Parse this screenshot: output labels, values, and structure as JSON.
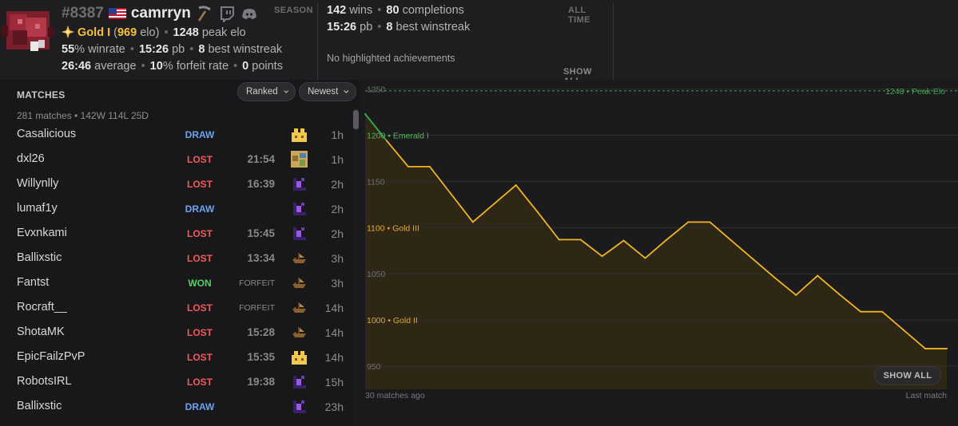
{
  "profile": {
    "rank": "#8387",
    "username": "camrryn",
    "tier": "Gold I",
    "elo": "969",
    "elo_word": "elo",
    "peak_elo": "1248",
    "peak_label": "peak elo",
    "winrate": "55",
    "winrate_label": "winrate",
    "pb": "15:26",
    "pb_label": "pb",
    "best_winstreak": "8",
    "winstreak_label": "best winstreak",
    "average": "26:46",
    "average_label": "average",
    "forfeit_rate": "10",
    "forfeit_label": "forfeit rate",
    "points": "0",
    "points_label": "points",
    "season_label": "SEASON"
  },
  "alltime": {
    "label": "ALL TIME",
    "wins": "142",
    "wins_label": "wins",
    "completions": "80",
    "completions_label": "completions",
    "pb": "15:26",
    "pb_label": "pb",
    "best_winstreak": "8",
    "winstreak_label": "best winstreak",
    "achievements": "No highlighted achievements",
    "show_all": "SHOW ALL"
  },
  "matches": {
    "title": "MATCHES",
    "filter": "Ranked",
    "sort": "Newest",
    "summary": "281 matches • 142W 114L 25D",
    "rows": [
      {
        "opponent": "Casalicious",
        "result": "DRAW",
        "time": "",
        "seed": "village",
        "ago": "1h"
      },
      {
        "opponent": "dxl26",
        "result": "LOST",
        "time": "21:54",
        "seed": "desert-temple",
        "ago": "1h"
      },
      {
        "opponent": "Willynlly",
        "result": "LOST",
        "time": "16:39",
        "seed": "ruined-portal",
        "ago": "2h"
      },
      {
        "opponent": "lumaf1y",
        "result": "DRAW",
        "time": "",
        "seed": "ruined-portal",
        "ago": "2h"
      },
      {
        "opponent": "Evxnkami",
        "result": "LOST",
        "time": "15:45",
        "seed": "ruined-portal",
        "ago": "2h"
      },
      {
        "opponent": "Ballixstic",
        "result": "LOST",
        "time": "13:34",
        "seed": "shipwreck",
        "ago": "3h"
      },
      {
        "opponent": "Fantst",
        "result": "WON",
        "time": "FORFEIT",
        "seed": "shipwreck",
        "ago": "3h"
      },
      {
        "opponent": "Rocraft__",
        "result": "LOST",
        "time": "FORFEIT",
        "seed": "shipwreck",
        "ago": "14h"
      },
      {
        "opponent": "ShotaMK",
        "result": "LOST",
        "time": "15:28",
        "seed": "shipwreck",
        "ago": "14h"
      },
      {
        "opponent": "EpicFailzPvP",
        "result": "LOST",
        "time": "15:35",
        "seed": "village",
        "ago": "14h"
      },
      {
        "opponent": "RobotsIRL",
        "result": "LOST",
        "time": "19:38",
        "seed": "ruined-portal",
        "ago": "15h"
      },
      {
        "opponent": "Ballixstic",
        "result": "DRAW",
        "time": "",
        "seed": "ruined-portal",
        "ago": "23h"
      }
    ]
  },
  "chart_data": {
    "type": "line",
    "ylim": [
      925,
      1260
    ],
    "y_ticks": [
      950,
      1050,
      1150,
      1250
    ],
    "reference_lines": [
      {
        "value": 1248,
        "label": "1248 • Peak Elo",
        "color": "#3fa34d",
        "dashed": true
      },
      {
        "value": 1200,
        "label": "1200 • Emerald I",
        "color": "#4fb85a"
      },
      {
        "value": 1100,
        "label": "1100 • Gold III",
        "color": "#e0a92a"
      },
      {
        "value": 1000,
        "label": "1000 • Gold II",
        "color": "#e0a92a"
      }
    ],
    "x_start_label": "30 matches ago",
    "x_end_label": "Last match",
    "values": [
      1223,
      1194,
      1166,
      1166,
      1136,
      1106,
      1126,
      1146,
      1117,
      1087,
      1087,
      1069,
      1086,
      1067,
      1087,
      1106,
      1106,
      1086,
      1066,
      1046,
      1027,
      1048,
      1028,
      1009,
      1009,
      989,
      969,
      969
    ],
    "line_color": "#f1b51c",
    "start_color": "#35b04a",
    "show_all": "SHOW ALL"
  }
}
